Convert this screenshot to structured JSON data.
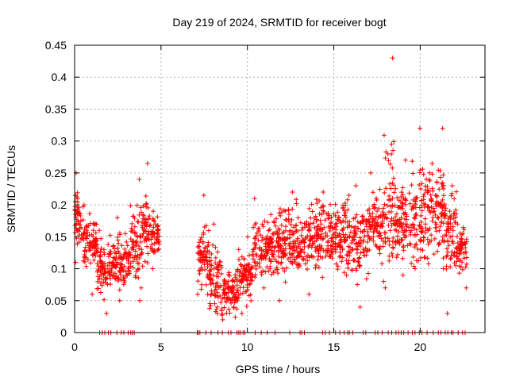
{
  "chart_data": {
    "type": "scatter",
    "title": "Day 219 of 2024, SRMTID for receiver bogt",
    "xlabel": "GPS time / hours",
    "ylabel": "SRMTID / TECUs",
    "xlim": [
      0,
      23.75
    ],
    "ylim": [
      0,
      0.45
    ],
    "x_ticks": [
      0,
      5,
      10,
      15,
      20
    ],
    "x_tick_labels": [
      "0",
      "5",
      "10",
      "15",
      "20"
    ],
    "y_ticks": [
      0,
      0.05,
      0.1,
      0.15,
      0.2,
      0.25,
      0.3,
      0.35,
      0.4,
      0.45
    ],
    "y_tick_labels": [
      "0",
      "0.05",
      "0.1",
      "0.15",
      "0.2",
      "0.25",
      "0.3",
      "0.35",
      "0.4",
      "0.45"
    ],
    "grid": true,
    "marker": "+",
    "color": "#ff0000",
    "series": [
      {
        "name": "SRMTID",
        "segments": [
          {
            "x_start": 0.0,
            "x_end": 0.5,
            "y_min": 0.11,
            "y_max": 0.25,
            "y_mean": 0.18
          },
          {
            "x_start": 0.5,
            "x_end": 1.3,
            "y_min": 0.06,
            "y_max": 0.2,
            "y_mean": 0.14
          },
          {
            "x_start": 1.3,
            "x_end": 2.0,
            "y_min": 0.03,
            "y_max": 0.16,
            "y_mean": 0.1
          },
          {
            "x_start": 2.0,
            "x_end": 3.2,
            "y_min": 0.05,
            "y_max": 0.18,
            "y_mean": 0.11
          },
          {
            "x_start": 3.2,
            "x_end": 3.8,
            "y_min": 0.05,
            "y_max": 0.24,
            "y_mean": 0.13
          },
          {
            "x_start": 3.8,
            "x_end": 4.4,
            "y_min": 0.07,
            "y_max": 0.265,
            "y_mean": 0.16
          },
          {
            "x_start": 4.4,
            "x_end": 4.9,
            "y_min": 0.1,
            "y_max": 0.19,
            "y_mean": 0.15
          },
          {
            "x_start": 7.1,
            "x_end": 7.8,
            "y_min": 0.06,
            "y_max": 0.215,
            "y_mean": 0.12
          },
          {
            "x_start": 7.8,
            "x_end": 8.5,
            "y_min": 0.03,
            "y_max": 0.17,
            "y_mean": 0.08
          },
          {
            "x_start": 8.5,
            "x_end": 9.5,
            "y_min": 0.02,
            "y_max": 0.13,
            "y_mean": 0.065
          },
          {
            "x_start": 9.5,
            "x_end": 10.3,
            "y_min": 0.03,
            "y_max": 0.15,
            "y_mean": 0.09
          },
          {
            "x_start": 10.3,
            "x_end": 11.5,
            "y_min": 0.07,
            "y_max": 0.21,
            "y_mean": 0.13
          },
          {
            "x_start": 11.5,
            "x_end": 13.5,
            "y_min": 0.05,
            "y_max": 0.22,
            "y_mean": 0.14
          },
          {
            "x_start": 13.5,
            "x_end": 15.5,
            "y_min": 0.06,
            "y_max": 0.22,
            "y_mean": 0.15
          },
          {
            "x_start": 15.5,
            "x_end": 17.0,
            "y_min": 0.04,
            "y_max": 0.23,
            "y_mean": 0.15
          },
          {
            "x_start": 17.0,
            "x_end": 17.9,
            "y_min": 0.08,
            "y_max": 0.25,
            "y_mean": 0.17
          },
          {
            "x_start": 17.9,
            "x_end": 18.5,
            "y_min": 0.07,
            "y_max": 0.43,
            "y_mean": 0.2
          },
          {
            "x_start": 18.5,
            "x_end": 19.5,
            "y_min": 0.09,
            "y_max": 0.27,
            "y_mean": 0.17
          },
          {
            "x_start": 19.5,
            "x_end": 20.5,
            "y_min": 0.1,
            "y_max": 0.32,
            "y_mean": 0.18
          },
          {
            "x_start": 20.5,
            "x_end": 21.5,
            "y_min": 0.1,
            "y_max": 0.32,
            "y_mean": 0.19
          },
          {
            "x_start": 21.5,
            "x_end": 22.1,
            "y_min": 0.03,
            "y_max": 0.23,
            "y_mean": 0.15
          },
          {
            "x_start": 22.1,
            "x_end": 22.7,
            "y_min": 0.07,
            "y_max": 0.17,
            "y_mean": 0.13
          }
        ],
        "zero_values_x": [
          1.45,
          1.6,
          1.75,
          1.95,
          2.1,
          2.45,
          2.7,
          2.85,
          3.1,
          3.25,
          3.35,
          3.45,
          7.1,
          7.15,
          7.25,
          7.6,
          7.9,
          8.3,
          8.55,
          8.9,
          9.05,
          9.4,
          9.5,
          9.6,
          9.75,
          9.85,
          10.45,
          10.8,
          11.15,
          11.6,
          12.45,
          13.05,
          13.15,
          13.3,
          14.35,
          14.5,
          14.75,
          15.1,
          15.35,
          15.6,
          15.8,
          15.9,
          16.1,
          16.7,
          16.85,
          17.4,
          17.55,
          17.8,
          18.15,
          18.35,
          18.6,
          18.75,
          18.9,
          19.05,
          19.3,
          19.55,
          19.7,
          19.95,
          20.1,
          20.4,
          20.75,
          21.05,
          21.2,
          21.45,
          21.6,
          21.8,
          21.9,
          22.2,
          22.45,
          22.6
        ]
      }
    ]
  }
}
